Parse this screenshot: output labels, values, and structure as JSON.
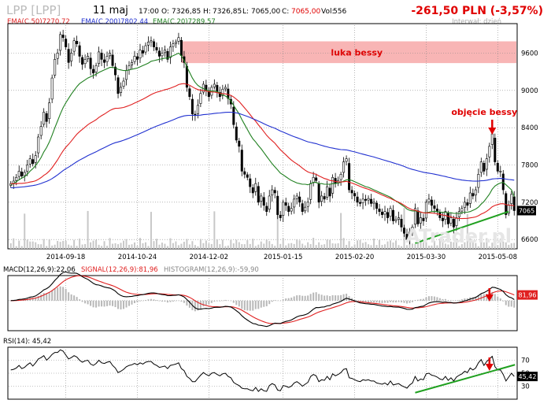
{
  "header": {
    "symbol": "LPP [LPP]",
    "date": "11 maj",
    "time": "17:00",
    "open_label": "O:",
    "open": "7326,85",
    "high_label": "H:",
    "high": "7326,85",
    "low_label": "L:",
    "low": "7065,00",
    "close_label": "C:",
    "close": "7065,00",
    "vol_label": "Vol:",
    "vol": "556",
    "change": "-261,50 PLN (-3,57%)",
    "interval": "Interwał: dzień",
    "watermark": "ATrader.pl"
  },
  "colors": {
    "up": "#000000",
    "down": "#000000",
    "ema50": "#e02020",
    "ema200": "#2030d0",
    "ema20": "#208020",
    "trend": "#1fa01f",
    "gap": "#f7a8a8",
    "annotation": "#e00000",
    "macd": "#000000",
    "signal": "#e02020",
    "hist": "#b8b8b8",
    "grid": "#888888",
    "frame": "#000000"
  },
  "chart_data": [
    {
      "type": "candlestick",
      "title": "LPP [LPP]",
      "legend": [
        "EMA(C,50)7270,72",
        "EMA(C,200)7802,44",
        "EMA(C,20)7289,57"
      ],
      "ylim": [
        6450,
        10050
      ],
      "yticks": [
        6600,
        7200,
        7800,
        8400,
        9000,
        9600
      ],
      "xtick_labels": [
        "2014-09-18",
        "2014-10-24",
        "2014-12-02",
        "2015-01-15",
        "2015-02-20",
        "2015-03-30",
        "2015-05-08"
      ],
      "xtick_index": [
        20,
        46,
        72,
        99,
        125,
        151,
        177
      ],
      "last_price_label": "7065",
      "annotations": [
        {
          "text": "luka bessy",
          "x_from": 62,
          "x_to": 180,
          "y_from": 9440,
          "y_to": 9790
        },
        {
          "text": "objęcie bessy",
          "x": 175,
          "y": 8200
        }
      ],
      "trendline": {
        "x1": 147,
        "y1": 6540,
        "x2": 181,
        "y2": 7050
      },
      "close": [
        7500,
        7540,
        7600,
        7700,
        7620,
        7680,
        7800,
        7900,
        7820,
        7950,
        8250,
        8420,
        8650,
        8500,
        8800,
        9200,
        9500,
        9600,
        9900,
        9850,
        9700,
        9450,
        9600,
        9800,
        9750,
        9550,
        9420,
        9500,
        9550,
        9350,
        9280,
        9400,
        9620,
        9500,
        9450,
        9550,
        9600,
        9400,
        9250,
        8950,
        9050,
        9150,
        9320,
        9400,
        9450,
        9550,
        9500,
        9650,
        9600,
        9720,
        9780,
        9800,
        9700,
        9650,
        9550,
        9600,
        9650,
        9500,
        9700,
        9750,
        9780,
        9850,
        9560,
        9450,
        9050,
        8900,
        8620,
        8600,
        8760,
        8950,
        9100,
        9000,
        8900,
        9050,
        9100,
        8980,
        8900,
        9020,
        9050,
        8870,
        8780,
        8450,
        8200,
        8100,
        7700,
        7650,
        7600,
        7450,
        7350,
        7500,
        7200,
        7300,
        7150,
        7050,
        7300,
        7400,
        7350,
        7000,
        6950,
        7200,
        7150,
        7050,
        7100,
        7250,
        7300,
        7200,
        7050,
        7120,
        7200,
        7500,
        7600,
        7550,
        7200,
        7300,
        7250,
        7450,
        7300,
        7600,
        7500,
        7550,
        7650,
        7850,
        7900,
        7400,
        7350,
        7300,
        7200,
        7180,
        7250,
        7230,
        7260,
        7180,
        7200,
        7100,
        7050,
        7000,
        7050,
        6950,
        7100,
        6900,
        6920,
        6950,
        6800,
        6700,
        6600,
        6720,
        6800,
        7100,
        6850,
        6950,
        6900,
        7200,
        7250,
        7150,
        7100,
        7050,
        6950,
        6900,
        7050,
        6850,
        6950,
        6800,
        6950,
        7050,
        7100,
        7200,
        7150,
        7350,
        7300,
        7400,
        7650,
        7850,
        7700,
        7900,
        8100,
        8300,
        7850,
        7700,
        7700,
        7400,
        7000,
        7150,
        7327,
        7065
      ],
      "ema20": [
        7480,
        7500,
        7530,
        7560,
        7590,
        7610,
        7650,
        7700,
        7740,
        7790,
        7850,
        7920,
        8010,
        8080,
        8170,
        8280,
        8400,
        8510,
        8620,
        8720,
        8800,
        8870,
        8940,
        9000,
        9060,
        9110,
        9140,
        9170,
        9200,
        9220,
        9240,
        9260,
        9290,
        9310,
        9330,
        9350,
        9370,
        9370,
        9360,
        9340,
        9330,
        9320,
        9320,
        9330,
        9340,
        9350,
        9360,
        9380,
        9400,
        9420,
        9440,
        9470,
        9480,
        9490,
        9500,
        9510,
        9520,
        9520,
        9540,
        9560,
        9580,
        9600,
        9560,
        9480,
        9380,
        9290,
        9200,
        9130,
        9080,
        9050,
        9030,
        9010,
        8990,
        8990,
        8990,
        8980,
        8960,
        8930,
        8910,
        8880,
        8830,
        8760,
        8690,
        8620,
        8530,
        8450,
        8370,
        8290,
        8220,
        8170,
        8110,
        8060,
        8000,
        7940,
        7880,
        7820,
        7770,
        7720,
        7670,
        7640,
        7610,
        7580,
        7550,
        7530,
        7510,
        7500,
        7490,
        7490,
        7480,
        7500,
        7520,
        7520,
        7500,
        7500,
        7490,
        7490,
        7490,
        7500,
        7500,
        7510,
        7520,
        7540,
        7560,
        7560,
        7550,
        7530,
        7510,
        7490,
        7470,
        7450,
        7440,
        7420,
        7400,
        7380,
        7360,
        7340,
        7320,
        7300,
        7280,
        7250,
        7220,
        7190,
        7160,
        7130,
        7090,
        7070,
        7060,
        7060,
        7050,
        7040,
        7030,
        7030,
        7040,
        7050,
        7050,
        7050,
        7040,
        7040,
        7040,
        7030,
        7030,
        7020,
        7020,
        7020,
        7030,
        7040,
        7040,
        7050,
        7070,
        7090,
        7120,
        7170,
        7210,
        7270,
        7330,
        7410,
        7460,
        7490,
        7510,
        7520,
        7480,
        7440,
        7400,
        7290
      ]
    },
    {
      "type": "line",
      "title": "MACD(12,26,9):22,06",
      "legend": [
        "MACD(12,26,9):22,06",
        "SIGNAL(12,26,9):81,96",
        "HISTOGRAM(12,26,9):-59,90"
      ],
      "ylim": [
        -600,
        500
      ],
      "last_value_label": "81,96",
      "annotation_arrow_x": 174
    },
    {
      "type": "line",
      "title": "RSI(14): 45,42",
      "ylim": [
        10,
        90
      ],
      "yticks": [
        30,
        50,
        70
      ],
      "last_value_label": "45,42",
      "trendline": {
        "x1": 147,
        "y1": 20,
        "x2": 181,
        "y2": 63
      },
      "annotation_arrow_x": 174,
      "rsi": [
        55,
        56,
        58,
        62,
        57,
        59,
        63,
        66,
        61,
        66,
        72,
        74,
        77,
        70,
        74,
        79,
        82,
        82,
        86,
        84,
        78,
        72,
        74,
        77,
        75,
        70,
        67,
        69,
        70,
        64,
        62,
        65,
        70,
        66,
        65,
        67,
        68,
        62,
        58,
        51,
        53,
        56,
        60,
        62,
        63,
        65,
        63,
        66,
        64,
        67,
        68,
        68,
        64,
        62,
        59,
        60,
        61,
        57,
        62,
        63,
        64,
        66,
        57,
        54,
        45,
        42,
        37,
        37,
        42,
        47,
        51,
        48,
        46,
        50,
        51,
        48,
        46,
        49,
        50,
        45,
        43,
        36,
        33,
        31,
        27,
        26,
        26,
        24,
        23,
        28,
        22,
        26,
        23,
        22,
        31,
        34,
        32,
        24,
        23,
        31,
        30,
        28,
        30,
        35,
        37,
        34,
        30,
        33,
        36,
        45,
        48,
        46,
        37,
        40,
        39,
        45,
        40,
        49,
        46,
        48,
        51,
        56,
        57,
        43,
        42,
        40,
        38,
        37,
        40,
        39,
        40,
        38,
        38,
        35,
        34,
        33,
        35,
        32,
        38,
        32,
        33,
        34,
        31,
        29,
        27,
        32,
        35,
        45,
        38,
        41,
        40,
        49,
        50,
        47,
        46,
        44,
        41,
        40,
        45,
        39,
        43,
        38,
        44,
        47,
        49,
        53,
        51,
        58,
        55,
        58,
        66,
        71,
        62,
        68,
        72,
        76,
        60,
        55,
        55,
        48,
        38,
        44,
        50,
        45
      ]
    }
  ]
}
